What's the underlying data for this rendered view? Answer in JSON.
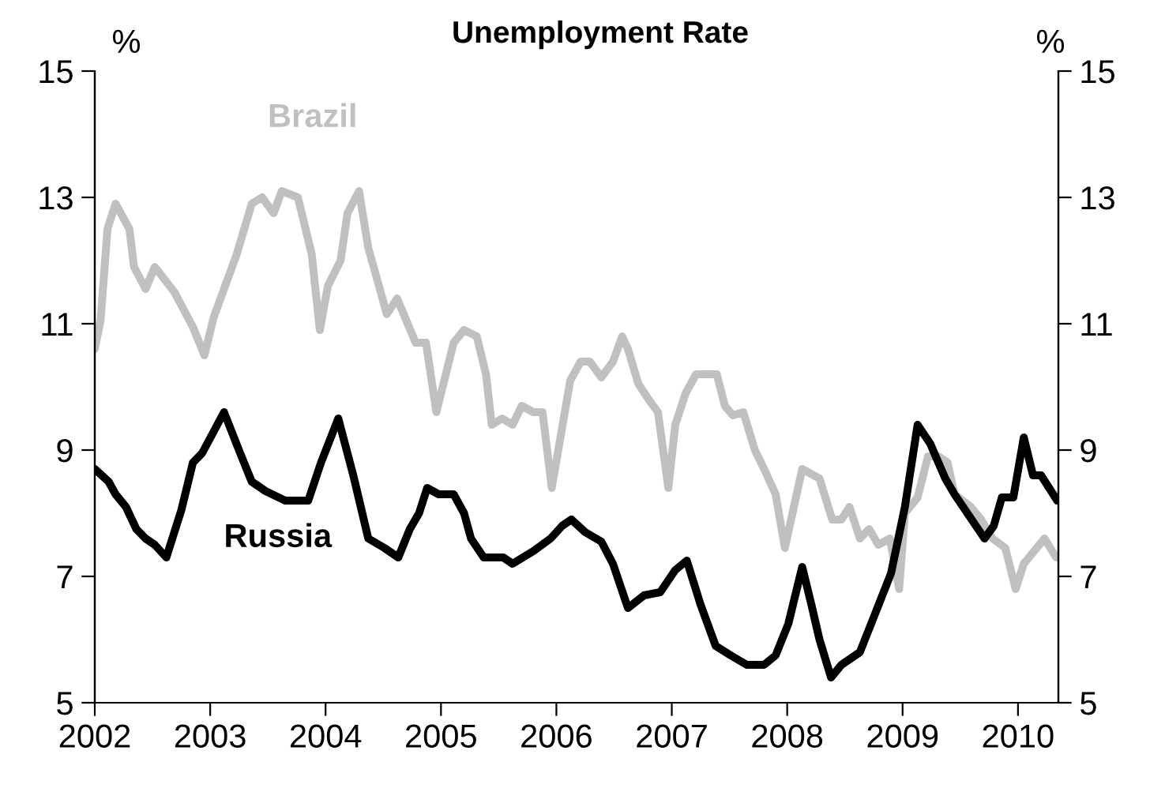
{
  "chart_data": {
    "type": "line",
    "title": "Unemployment Rate",
    "ylabel": "%",
    "y2label": "%",
    "xlim": [
      2002,
      2010.35
    ],
    "xticks": [
      2002,
      2003,
      2004,
      2005,
      2006,
      2007,
      2008,
      2009,
      2010
    ],
    "ylim": [
      5,
      15
    ],
    "yticks": [
      5,
      7,
      9,
      11,
      13,
      15
    ],
    "y2lim": [
      5,
      15
    ],
    "y2ticks": [
      5,
      7,
      9,
      11,
      13,
      15
    ],
    "grid": false,
    "legend": false,
    "marker": "none",
    "line_style": "solid",
    "series": [
      {
        "name": "Brazil",
        "color": "#c0c0c0",
        "x": [
          2002.0,
          2002.05,
          2002.11,
          2002.18,
          2002.3,
          2002.34,
          2002.44,
          2002.52,
          2002.69,
          2002.85,
          2002.95,
          2003.03,
          2003.12,
          2003.23,
          2003.36,
          2003.45,
          2003.55,
          2003.62,
          2003.76,
          2003.88,
          2003.95,
          2004.02,
          2004.13,
          2004.19,
          2004.29,
          2004.37,
          2004.47,
          2004.53,
          2004.62,
          2004.78,
          2004.87,
          2004.96,
          2005.11,
          2005.2,
          2005.31,
          2005.39,
          2005.44,
          2005.53,
          2005.62,
          2005.7,
          2005.8,
          2005.88,
          2005.96,
          2006.12,
          2006.21,
          2006.29,
          2006.39,
          2006.49,
          2006.57,
          2006.62,
          2006.71,
          2006.8,
          2006.88,
          2006.97,
          2007.03,
          2007.12,
          2007.21,
          2007.39,
          2007.46,
          2007.53,
          2007.62,
          2007.72,
          2007.8,
          2007.9,
          2007.98,
          2008.13,
          2008.28,
          2008.39,
          2008.47,
          2008.54,
          2008.63,
          2008.71,
          2008.79,
          2008.89,
          2008.97,
          2009.02,
          2009.13,
          2009.22,
          2009.31,
          2009.39,
          2009.45,
          2009.59,
          2009.68,
          2009.78,
          2009.89,
          2009.98,
          2010.05,
          2010.23,
          2010.33
        ],
        "values": [
          10.6,
          11.05,
          12.5,
          12.9,
          12.5,
          11.9,
          11.55,
          11.9,
          11.5,
          10.95,
          10.5,
          11.1,
          11.55,
          12.1,
          12.9,
          13.0,
          12.75,
          13.1,
          13.0,
          12.1,
          10.9,
          11.6,
          12.0,
          12.75,
          13.1,
          12.2,
          11.55,
          11.15,
          11.4,
          10.7,
          10.7,
          9.6,
          10.7,
          10.9,
          10.8,
          10.2,
          9.4,
          9.5,
          9.4,
          9.7,
          9.6,
          9.6,
          8.4,
          10.1,
          10.4,
          10.4,
          10.15,
          10.4,
          10.8,
          10.6,
          10.05,
          9.8,
          9.6,
          8.4,
          9.4,
          9.9,
          10.2,
          10.2,
          9.7,
          9.55,
          9.6,
          9.0,
          8.7,
          8.3,
          7.45,
          8.7,
          8.55,
          7.9,
          7.9,
          8.1,
          7.6,
          7.75,
          7.5,
          7.6,
          6.8,
          8.0,
          8.25,
          8.9,
          8.9,
          8.8,
          8.3,
          8.1,
          7.9,
          7.6,
          7.45,
          6.8,
          7.2,
          7.6,
          7.3
        ]
      },
      {
        "name": "Russia",
        "color": "#000000",
        "x": [
          2002.0,
          2002.12,
          2002.18,
          2002.27,
          2002.36,
          2002.44,
          2002.52,
          2002.62,
          2002.75,
          2002.85,
          2002.93,
          2003.12,
          2003.26,
          2003.36,
          2003.48,
          2003.65,
          2003.85,
          2003.96,
          2004.11,
          2004.24,
          2004.37,
          2004.51,
          2004.63,
          2004.73,
          2004.81,
          2004.88,
          2004.98,
          2005.11,
          2005.2,
          2005.26,
          2005.37,
          2005.54,
          2005.62,
          2005.8,
          2005.95,
          2006.05,
          2006.13,
          2006.25,
          2006.39,
          2006.49,
          2006.62,
          2006.76,
          2006.9,
          2007.03,
          2007.13,
          2007.25,
          2007.38,
          2007.51,
          2007.65,
          2007.8,
          2007.9,
          2008.01,
          2008.13,
          2008.21,
          2008.28,
          2008.38,
          2008.47,
          2008.63,
          2008.76,
          2008.9,
          2009.02,
          2009.13,
          2009.24,
          2009.37,
          2009.45,
          2009.71,
          2009.79,
          2009.86,
          2009.96,
          2010.05,
          2010.13,
          2010.2,
          2010.27,
          2010.34
        ],
        "values": [
          8.7,
          8.5,
          8.3,
          8.1,
          7.75,
          7.6,
          7.5,
          7.3,
          8.05,
          8.8,
          8.95,
          9.6,
          8.95,
          8.5,
          8.35,
          8.2,
          8.2,
          8.8,
          9.5,
          8.6,
          7.6,
          7.45,
          7.3,
          7.75,
          8.0,
          8.4,
          8.3,
          8.3,
          8.0,
          7.6,
          7.3,
          7.3,
          7.2,
          7.4,
          7.6,
          7.8,
          7.9,
          7.7,
          7.55,
          7.2,
          6.5,
          6.7,
          6.75,
          7.1,
          7.25,
          6.55,
          5.9,
          5.75,
          5.6,
          5.6,
          5.75,
          6.25,
          7.15,
          6.55,
          6.0,
          5.4,
          5.6,
          5.8,
          6.4,
          7.05,
          8.1,
          9.4,
          9.1,
          8.55,
          8.3,
          7.6,
          7.8,
          8.25,
          8.25,
          9.2,
          8.6,
          8.6,
          8.4,
          8.2
        ]
      }
    ]
  }
}
